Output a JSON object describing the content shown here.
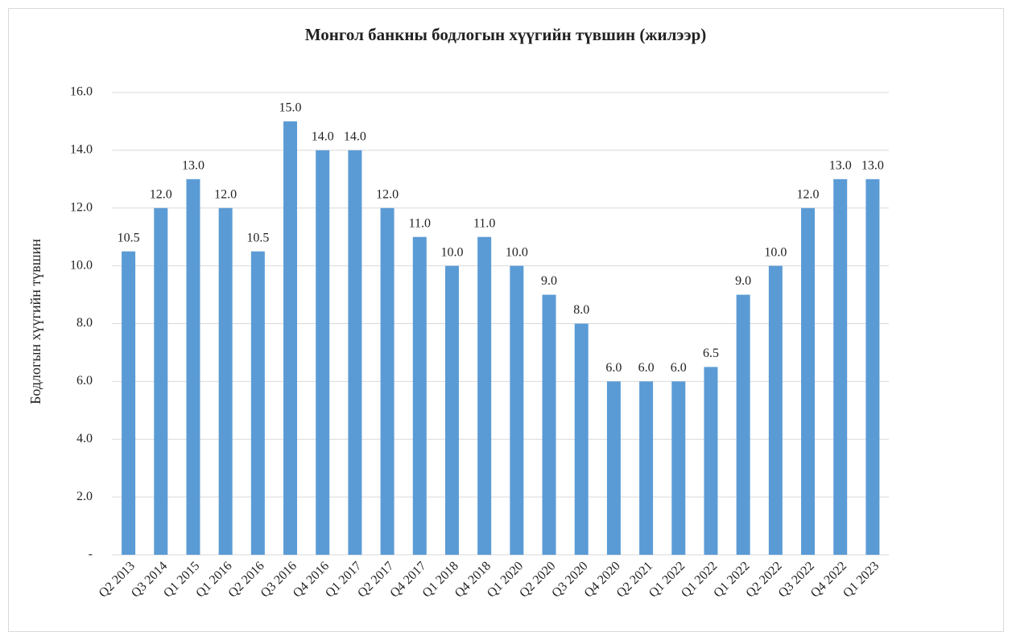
{
  "chart_data": {
    "type": "bar",
    "title": "Монгол банкны бодлогын хүүгийн түвшин (жилээр)",
    "y_label": "Бодлогын хүүгийн түвшин",
    "categories": [
      "Q2 2013",
      "Q3 2014",
      "Q1 2015",
      "Q1 2016",
      "Q2 2016",
      "Q3 2016",
      "Q4 2016",
      "Q1 2017",
      "Q2 2017",
      "Q4 2017",
      "Q1 2018",
      "Q4 2018",
      "Q1 2020",
      "Q2 2020",
      "Q3 2020",
      "Q4 2020",
      "Q2 2021",
      "Q1 2022",
      "Q1 2022",
      "Q1 2022",
      "Q2 2022",
      "Q3 2022",
      "Q4 2022",
      "Q1 2023"
    ],
    "values": [
      10.5,
      12,
      13,
      12,
      10.5,
      15,
      14,
      14,
      12,
      11,
      10,
      11,
      10,
      9,
      8,
      6,
      6,
      6,
      6.5,
      9,
      10,
      12,
      13,
      13
    ],
    "value_labels": [
      "10.5",
      "12.0",
      "13.0",
      "12.0",
      "10.5",
      "15.0",
      "14.0",
      "14.0",
      "12.0",
      "11.0",
      "10.0",
      "11.0",
      "10.0",
      "9.0",
      "8.0",
      "6.0",
      "6.0",
      "6.0",
      "6.5",
      "9.0",
      "10.0",
      "12.0",
      "13.0",
      "13.0"
    ],
    "color": "#5b9bd5",
    "ylim": [
      0,
      16
    ],
    "yticks": [
      {
        "value": 0,
        "label": "-"
      },
      {
        "value": 2,
        "label": "2.0"
      },
      {
        "value": 4,
        "label": "4.0"
      },
      {
        "value": 6,
        "label": "6.0"
      },
      {
        "value": 8,
        "label": "8.0"
      },
      {
        "value": 10,
        "label": "10.0"
      },
      {
        "value": 12,
        "label": "12.0"
      },
      {
        "value": 14,
        "label": "14.0"
      },
      {
        "value": 16,
        "label": "16.0"
      }
    ],
    "grid": true
  }
}
